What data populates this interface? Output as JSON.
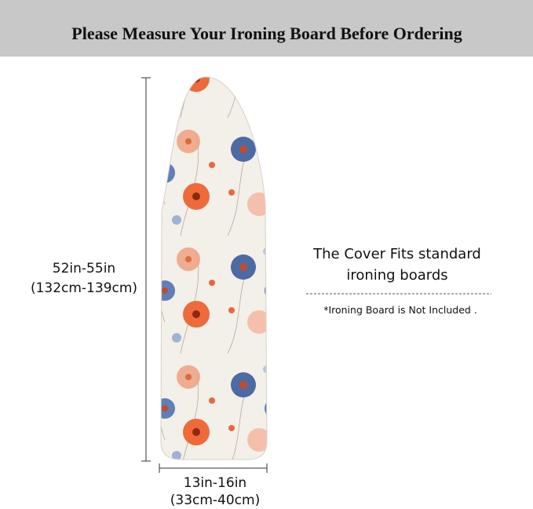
{
  "header": {
    "title": "Please Measure Your Ironing Board Before Ordering"
  },
  "dimensions": {
    "length": {
      "imperial": "52in-55in",
      "metric": "(132cm-139cm)"
    },
    "width": {
      "imperial": "13in-16in",
      "metric": "(33cm-40cm)"
    }
  },
  "note": {
    "line1": "The Cover Fits standard",
    "line2": "ironing boards",
    "disclaimer": "*Ironing Board is Not Included ."
  }
}
